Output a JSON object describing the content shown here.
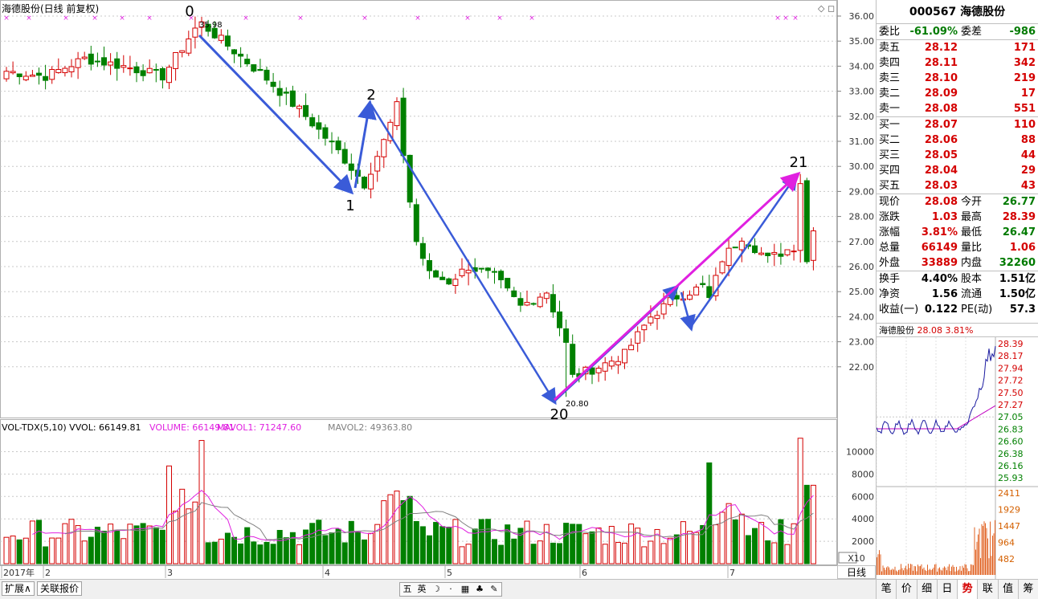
{
  "main_title": "海德股份(日线 前复权)",
  "main_price_axis": [
    "36.00",
    "35.00",
    "34.00",
    "33.00",
    "32.00",
    "31.00",
    "30.00",
    "29.00",
    "28.00",
    "27.00",
    "26.00",
    "25.00",
    "24.00",
    "23.00",
    "22.00"
  ],
  "annotations": {
    "wave_labels": [
      "0",
      "1",
      "2",
      "20",
      "21"
    ],
    "high_label": "35.98",
    "low_label": "20.80"
  },
  "vol_title": {
    "name": "VOL-TDX(5,10)",
    "vvol": "VVOL: 66149.81",
    "volume": "VOLUME: 66149.81",
    "mavol1": "MAVOL1: 71247.60",
    "mavol2": "MAVOL2: 49363.80"
  },
  "vol_axis": [
    "10000",
    "8000",
    "6000",
    "4000",
    "2000"
  ],
  "vol_unit": "X10",
  "time_axis": [
    "2017年",
    "2",
    "3",
    "4",
    "5",
    "6",
    "7"
  ],
  "period_button": "日线",
  "bottom_tabs": [
    "扩展∧",
    "关联报价"
  ],
  "ime_items": [
    "五",
    "英",
    "☽",
    "·",
    "▦",
    "♣",
    "✎"
  ],
  "quote": {
    "code": "000567",
    "name": "海德股份",
    "weibi_label": "委比",
    "weibi": "-61.09%",
    "weicha_label": "委差",
    "weicha": "-986",
    "asks": [
      {
        "label": "卖五",
        "price": "28.12",
        "vol": "171"
      },
      {
        "label": "卖四",
        "price": "28.11",
        "vol": "342"
      },
      {
        "label": "卖三",
        "price": "28.10",
        "vol": "219"
      },
      {
        "label": "卖二",
        "price": "28.09",
        "vol": "17"
      },
      {
        "label": "卖一",
        "price": "28.08",
        "vol": "551"
      }
    ],
    "bids": [
      {
        "label": "买一",
        "price": "28.07",
        "vol": "110"
      },
      {
        "label": "买二",
        "price": "28.06",
        "vol": "88"
      },
      {
        "label": "买三",
        "price": "28.05",
        "vol": "44"
      },
      {
        "label": "买四",
        "price": "28.04",
        "vol": "29"
      },
      {
        "label": "买五",
        "price": "28.03",
        "vol": "43"
      }
    ],
    "stats": [
      {
        "l1": "现价",
        "v1": "28.08",
        "c1": "red",
        "l2": "今开",
        "v2": "26.77",
        "c2": "green"
      },
      {
        "l1": "涨跌",
        "v1": "1.03",
        "c1": "red",
        "l2": "最高",
        "v2": "28.39",
        "c2": "red"
      },
      {
        "l1": "涨幅",
        "v1": "3.81%",
        "c1": "red",
        "l2": "最低",
        "v2": "26.47",
        "c2": "green"
      },
      {
        "l1": "总量",
        "v1": "66149",
        "c1": "red",
        "l2": "量比",
        "v2": "1.06",
        "c2": "red"
      },
      {
        "l1": "外盘",
        "v1": "33889",
        "c1": "red",
        "l2": "内盘",
        "v2": "32260",
        "c2": "green"
      }
    ],
    "stats2": [
      {
        "l1": "换手",
        "v1": "4.40%",
        "l2": "股本",
        "v2": "1.51亿"
      },
      {
        "l1": "净资",
        "v1": "1.56",
        "l2": "流通",
        "v2": "1.50亿"
      },
      {
        "l1": "收益(一)",
        "v1": "0.122",
        "l2": "PE(动)",
        "v2": "57.3"
      }
    ]
  },
  "mini_chart": {
    "name": "海德股份",
    "price": "28.08",
    "pct": "3.81%",
    "price_axis": [
      "28.39",
      "28.17",
      "27.94",
      "27.72",
      "27.50",
      "27.27",
      "27.05",
      "26.83",
      "26.60",
      "26.38",
      "26.16",
      "25.93"
    ],
    "vol_axis": [
      "2411",
      "1929",
      "1447",
      "964",
      "482"
    ]
  },
  "right_tabs": [
    "笔",
    "价",
    "细",
    "日",
    "势",
    "联",
    "值",
    "筹"
  ],
  "active_right_tab": "势",
  "colors": {
    "up": "#d40000",
    "down": "#008000",
    "arrow": "#3a5bd8",
    "magenta": "#e020e0"
  }
}
